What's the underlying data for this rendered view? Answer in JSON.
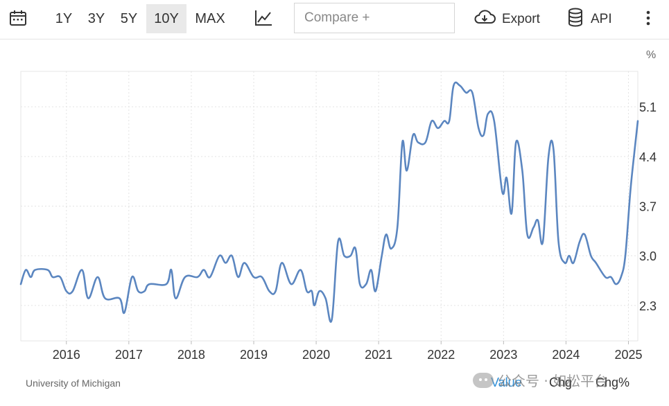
{
  "toolbar": {
    "calendar_icon": "calendar-icon",
    "ranges": [
      "1Y",
      "3Y",
      "5Y",
      "10Y",
      "MAX"
    ],
    "active_range": "10Y",
    "chart_type_icon": "line-chart-icon",
    "compare_placeholder": "Compare +",
    "export_label": "Export",
    "export_icon": "cloud-download-icon",
    "api_label": "API",
    "api_icon": "database-icon",
    "more_icon": "vertical-dots-icon"
  },
  "footer": {
    "source": "University of Michigan",
    "value_label": "Value",
    "chg_label": "Chg",
    "chgpct_label": "Chg%",
    "accent_color": "#2f8fd8"
  },
  "watermark": {
    "text": "公众号 · 如松平台"
  },
  "chart_data": {
    "type": "line",
    "title": "",
    "xlabel": "",
    "ylabel": "",
    "unit_label": "%",
    "x_ticks": [
      "2016",
      "2017",
      "2018",
      "2019",
      "2020",
      "2021",
      "2022",
      "2023",
      "2024",
      "2025"
    ],
    "y_ticks": [
      "2.3",
      "3.0",
      "3.7",
      "4.4",
      "5.1"
    ],
    "ylim": [
      1.8,
      5.6
    ],
    "xlim": [
      2015.27,
      2025.15
    ],
    "grid": true,
    "line_color": "#5b86c0",
    "series": [
      {
        "name": "",
        "points": [
          [
            2015.27,
            2.6
          ],
          [
            2015.35,
            2.8
          ],
          [
            2015.43,
            2.7
          ],
          [
            2015.5,
            2.8
          ],
          [
            2015.7,
            2.8
          ],
          [
            2015.78,
            2.7
          ],
          [
            2015.9,
            2.7
          ],
          [
            2016.0,
            2.5
          ],
          [
            2016.1,
            2.5
          ],
          [
            2016.25,
            2.8
          ],
          [
            2016.35,
            2.4
          ],
          [
            2016.5,
            2.7
          ],
          [
            2016.62,
            2.4
          ],
          [
            2016.85,
            2.4
          ],
          [
            2016.93,
            2.2
          ],
          [
            2017.05,
            2.7
          ],
          [
            2017.15,
            2.5
          ],
          [
            2017.25,
            2.5
          ],
          [
            2017.33,
            2.6
          ],
          [
            2017.6,
            2.6
          ],
          [
            2017.68,
            2.8
          ],
          [
            2017.75,
            2.4
          ],
          [
            2017.9,
            2.7
          ],
          [
            2018.1,
            2.7
          ],
          [
            2018.2,
            2.8
          ],
          [
            2018.3,
            2.7
          ],
          [
            2018.45,
            3.0
          ],
          [
            2018.55,
            2.9
          ],
          [
            2018.65,
            3.0
          ],
          [
            2018.75,
            2.7
          ],
          [
            2018.85,
            2.9
          ],
          [
            2019.0,
            2.7
          ],
          [
            2019.13,
            2.7
          ],
          [
            2019.25,
            2.5
          ],
          [
            2019.35,
            2.5
          ],
          [
            2019.45,
            2.9
          ],
          [
            2019.6,
            2.6
          ],
          [
            2019.75,
            2.8
          ],
          [
            2019.85,
            2.5
          ],
          [
            2019.93,
            2.5
          ],
          [
            2019.97,
            2.3
          ],
          [
            2020.05,
            2.5
          ],
          [
            2020.15,
            2.4
          ],
          [
            2020.25,
            2.1
          ],
          [
            2020.35,
            3.2
          ],
          [
            2020.45,
            3.0
          ],
          [
            2020.55,
            3.0
          ],
          [
            2020.63,
            3.1
          ],
          [
            2020.7,
            2.6
          ],
          [
            2020.8,
            2.6
          ],
          [
            2020.88,
            2.8
          ],
          [
            2020.95,
            2.5
          ],
          [
            2021.05,
            3.0
          ],
          [
            2021.12,
            3.3
          ],
          [
            2021.2,
            3.1
          ],
          [
            2021.3,
            3.4
          ],
          [
            2021.38,
            4.6
          ],
          [
            2021.45,
            4.2
          ],
          [
            2021.55,
            4.7
          ],
          [
            2021.63,
            4.6
          ],
          [
            2021.75,
            4.6
          ],
          [
            2021.85,
            4.9
          ],
          [
            2021.95,
            4.8
          ],
          [
            2022.05,
            4.9
          ],
          [
            2022.13,
            4.9
          ],
          [
            2022.2,
            5.4
          ],
          [
            2022.3,
            5.4
          ],
          [
            2022.4,
            5.3
          ],
          [
            2022.5,
            5.3
          ],
          [
            2022.6,
            4.8
          ],
          [
            2022.68,
            4.7
          ],
          [
            2022.75,
            5.0
          ],
          [
            2022.85,
            4.9
          ],
          [
            2022.98,
            3.9
          ],
          [
            2023.05,
            4.1
          ],
          [
            2023.13,
            3.6
          ],
          [
            2023.2,
            4.6
          ],
          [
            2023.3,
            4.2
          ],
          [
            2023.38,
            3.3
          ],
          [
            2023.48,
            3.4
          ],
          [
            2023.55,
            3.5
          ],
          [
            2023.63,
            3.2
          ],
          [
            2023.72,
            4.4
          ],
          [
            2023.8,
            4.5
          ],
          [
            2023.88,
            3.2
          ],
          [
            2023.98,
            2.9
          ],
          [
            2024.05,
            3.0
          ],
          [
            2024.12,
            2.9
          ],
          [
            2024.22,
            3.2
          ],
          [
            2024.3,
            3.3
          ],
          [
            2024.4,
            3.0
          ],
          [
            2024.48,
            2.9
          ],
          [
            2024.63,
            2.7
          ],
          [
            2024.72,
            2.7
          ],
          [
            2024.8,
            2.6
          ],
          [
            2024.88,
            2.7
          ],
          [
            2024.95,
            3.0
          ],
          [
            2025.03,
            3.9
          ],
          [
            2025.1,
            4.5
          ],
          [
            2025.15,
            4.9
          ]
        ]
      }
    ]
  }
}
